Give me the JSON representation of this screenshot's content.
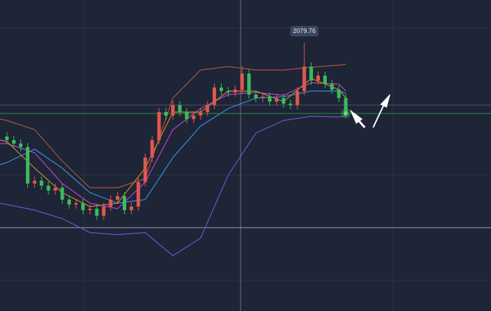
{
  "chart_data": {
    "type": "candlestick",
    "up_color": "#e0584f",
    "down_color": "#3dbb5a",
    "xlim": [
      -1,
      70
    ],
    "ylim": [
      1984,
      2095
    ],
    "open": [
      2046.25,
      2045,
      2043.75,
      2042.5,
      2029.5,
      2030.5,
      2028.75,
      2027,
      2028,
      2023.75,
      2022,
      2022.5,
      2020,
      2020.5,
      2018,
      2021.25,
      2023.75,
      2025,
      2020,
      2021.25,
      2030,
      2038.75,
      2045,
      2055,
      2053.75,
      2057.5,
      2055,
      2052.5,
      2053.75,
      2055,
      2057.5,
      2063.75,
      2062.5,
      2062,
      2063,
      2068.75,
      2061.25,
      2060,
      2060.5,
      2058.75,
      2060,
      2058,
      2057.5,
      2062.5,
      2071.25,
      2066.25,
      2068,
      2065,
      2063,
      2060
    ],
    "high": [
      2047.75,
      2046.5,
      2045.25,
      2044,
      2032,
      2032,
      2030.25,
      2029.5,
      2029.5,
      2025.25,
      2024,
      2024,
      2022,
      2022,
      2022.75,
      2025.25,
      2026.5,
      2026.5,
      2022.75,
      2031.5,
      2040.25,
      2046.5,
      2056.5,
      2056.5,
      2059,
      2059,
      2056.5,
      2055.25,
      2056.5,
      2059,
      2065.25,
      2065.25,
      2064,
      2064.5,
      2071.5,
      2070.25,
      2062.75,
      2062,
      2062,
      2061.5,
      2061.5,
      2059.5,
      2064,
      2079.76,
      2072.75,
      2069.5,
      2069.5,
      2066.5,
      2064.5,
      2061.5
    ],
    "low": [
      2043.5,
      2042.25,
      2041,
      2028,
      2028,
      2027.25,
      2025.5,
      2025.5,
      2022.25,
      2020.5,
      2020.5,
      2018.5,
      2018.5,
      2016.5,
      2016.5,
      2019.75,
      2022.25,
      2018.5,
      2018.5,
      2019.75,
      2028.5,
      2037.25,
      2043.5,
      2052.25,
      2052.25,
      2053.5,
      2051,
      2051,
      2052.25,
      2053.5,
      2056,
      2061,
      2060.5,
      2060.5,
      2061.5,
      2059.75,
      2058.5,
      2058.5,
      2057.25,
      2057.25,
      2056.5,
      2056,
      2056,
      2061,
      2064.75,
      2064.75,
      2063.5,
      2061.5,
      2058.5,
      2053
    ],
    "close": [
      2045,
      2043.75,
      2042.5,
      2029.5,
      2030.5,
      2028.75,
      2027,
      2028,
      2023.75,
      2022,
      2022.5,
      2020,
      2020.5,
      2018,
      2021.25,
      2023.75,
      2025,
      2020,
      2021.25,
      2030,
      2038.75,
      2045,
      2055,
      2053.75,
      2057.5,
      2055,
      2052.5,
      2053.75,
      2055,
      2057.5,
      2063.75,
      2062.5,
      2062,
      2063,
      2068.75,
      2061.25,
      2060,
      2060.5,
      2058.75,
      2060,
      2058,
      2057.5,
      2062.5,
      2071.25,
      2066.25,
      2068,
      2065,
      2063,
      2060,
      2054.5
    ],
    "lines": [
      {
        "color": "#b0513c",
        "x": [
          -1,
          0,
          4,
          8,
          12,
          16,
          20,
          24,
          28,
          32,
          36,
          40,
          44,
          48,
          49
        ],
        "values": [
          2052.5,
          2052,
          2048.75,
          2037.5,
          2028,
          2028,
          2031.25,
          2060,
          2070,
          2071.25,
          2070,
          2070,
          2071,
          2071.75,
          2072
        ]
      },
      {
        "color": "#7a4fc8",
        "x": [
          -1,
          0,
          4,
          8,
          12,
          16,
          20,
          24,
          28,
          32,
          36,
          40,
          44,
          48,
          49
        ],
        "values": [
          2022.5,
          2022,
          2020,
          2017,
          2012,
          2011.25,
          2012,
          2003.75,
          2010,
          2032.5,
          2047.5,
          2052,
          2053.5,
          2053.25,
          2053.75
        ]
      },
      {
        "color": "#3b8fd8",
        "x": [
          -1,
          0,
          4,
          8,
          12,
          16,
          20,
          24,
          28,
          32,
          36,
          40,
          44,
          48,
          49
        ],
        "values": [
          2036.25,
          2037,
          2041.75,
          2035,
          2026.25,
          2022.5,
          2023.75,
          2038.75,
          2050,
          2056.25,
          2060,
          2060.5,
          2062.5,
          2062.5,
          2061.75
        ]
      },
      {
        "color": "#c23fc6",
        "x": [
          -1,
          0,
          4,
          8,
          12,
          16,
          20,
          24,
          28,
          32,
          36,
          40,
          44,
          48,
          49
        ],
        "values": [
          2043.75,
          2043.75,
          2040.5,
          2029.5,
          2022.5,
          2020.5,
          2030,
          2048.75,
          2056.25,
          2061.25,
          2062,
          2061,
          2065.5,
          2065,
          2062.5
        ]
      },
      {
        "color": "#c8862a",
        "x": [
          -1,
          0,
          4,
          8,
          12,
          16,
          20,
          24,
          28,
          32,
          36,
          40,
          44,
          48,
          49
        ],
        "values": [
          2045,
          2044.5,
          2035,
          2026.25,
          2021.25,
          2022.5,
          2035,
          2055,
          2055,
          2062.5,
          2062.5,
          2058.75,
          2067,
          2063,
          2060
        ]
      }
    ]
  }
}
